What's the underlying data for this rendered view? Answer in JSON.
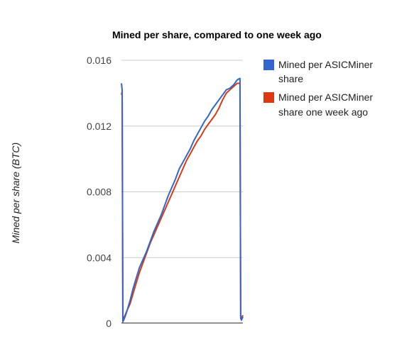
{
  "chart_data": {
    "type": "line",
    "title": "Mined per share, compared to one week ago",
    "xlabel": "",
    "ylabel": "Mined per share (BTC)",
    "ylim": [
      0,
      0.016
    ],
    "yticks": [
      "0",
      "0.004",
      "0.008",
      "0.012",
      "0.016"
    ],
    "ytick_values": [
      0,
      0.004,
      0.008,
      0.012,
      0.016
    ],
    "grid": true,
    "legend_position": "right",
    "colors": {
      "Mined per ASICMiner share": "#3366cc",
      "Mined per ASICMiner share one week ago": "#dc3912"
    },
    "series": [
      {
        "name": "Mined per ASICMiner share",
        "x": [
          0,
          1,
          2,
          3,
          5,
          8,
          12,
          16,
          20,
          25,
          30,
          35,
          40,
          45,
          50,
          55,
          60,
          65,
          70,
          75,
          80,
          85,
          90,
          95,
          100,
          105,
          110,
          115,
          120,
          125,
          130,
          135,
          140,
          145,
          150,
          155,
          160,
          164,
          165,
          166,
          167,
          168
        ],
        "y": [
          0.0146,
          0.0142,
          0.0001,
          0.0002,
          0.0004,
          0.0008,
          0.0014,
          0.0021,
          0.0027,
          0.0034,
          0.0039,
          0.0044,
          0.005,
          0.0056,
          0.0061,
          0.0066,
          0.0072,
          0.0078,
          0.0083,
          0.0088,
          0.0094,
          0.0098,
          0.0102,
          0.0106,
          0.0111,
          0.0115,
          0.0119,
          0.0123,
          0.0126,
          0.013,
          0.0133,
          0.0136,
          0.0139,
          0.0142,
          0.0143,
          0.0145,
          0.0148,
          0.0149,
          0.0004,
          0.0002,
          0.0003,
          0.0004
        ]
      },
      {
        "name": "Mined per ASICMiner share one week ago",
        "x": [
          0,
          1,
          2,
          3,
          5,
          8,
          12,
          16,
          20,
          25,
          30,
          35,
          40,
          45,
          50,
          55,
          60,
          65,
          70,
          75,
          80,
          85,
          90,
          95,
          100,
          105,
          110,
          115,
          120,
          125,
          130,
          135,
          140,
          145,
          150,
          155,
          160,
          164,
          165,
          166,
          167,
          168
        ],
        "y": [
          0.0139,
          0.0141,
          0.0001,
          0.0003,
          0.0005,
          0.0008,
          0.0012,
          0.0018,
          0.0024,
          0.0031,
          0.0037,
          0.0043,
          0.0049,
          0.0054,
          0.0059,
          0.0064,
          0.0069,
          0.0074,
          0.0079,
          0.0084,
          0.0089,
          0.0094,
          0.0099,
          0.0103,
          0.0107,
          0.0111,
          0.0114,
          0.0118,
          0.0121,
          0.0124,
          0.0127,
          0.0131,
          0.0136,
          0.014,
          0.0142,
          0.0144,
          0.0146,
          0.0146,
          0.0003,
          0.0002,
          0.0004,
          0.0005
        ]
      }
    ]
  }
}
